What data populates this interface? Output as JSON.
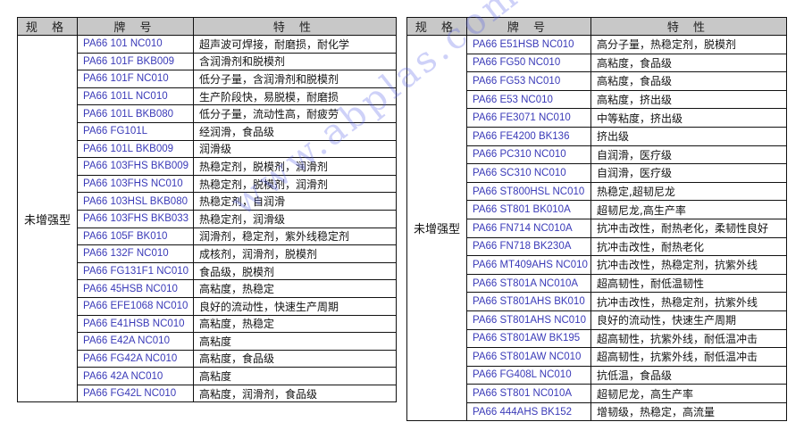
{
  "headers": {
    "spec": "规 格",
    "grade": "牌 号",
    "feature": "特 性"
  },
  "left_table": {
    "spec": "未增强型",
    "rows": [
      {
        "grade": "PA66 101 NC010",
        "feature": "超声波可焊接，耐磨损，耐化学"
      },
      {
        "grade": "PA66 101F BKB009",
        "feature": "含润滑剂和脱模剂"
      },
      {
        "grade": "PA66 101F NC010",
        "feature": "低分子量，含润滑剂和脱模剂"
      },
      {
        "grade": "PA66 101L NC010",
        "feature": "生产阶段快，易脱模，耐磨损"
      },
      {
        "grade": "PA66 101L BKB080",
        "feature": "低分子量，流动性高，耐疲劳"
      },
      {
        "grade": "PA66 FG101L",
        "feature": "经润滑，食品级"
      },
      {
        "grade": "PA66 101L BKB009",
        "feature": "润滑级"
      },
      {
        "grade": "PA66 103FHS BKB009",
        "feature": "热稳定剂，脱模剂，润滑剂"
      },
      {
        "grade": "PA66 103FHS NC010",
        "feature": "热稳定剂，脱模剂，润滑剂"
      },
      {
        "grade": "PA66 103HSL BKB080",
        "feature": "热稳定剂，自润滑"
      },
      {
        "grade": "PA66 103FHS BKB033",
        "feature": "热稳定剂，润滑级"
      },
      {
        "grade": "PA66 105F BK010",
        "feature": "润滑剂，稳定剂，紫外线稳定剂"
      },
      {
        "grade": "PA66 132F NC010",
        "feature": "成核剂，润滑剂，脱模剂"
      },
      {
        "grade": "PA66 FG131F1 NC010",
        "feature": "食品级，脱模剂"
      },
      {
        "grade": "PA66 45HSB NC010",
        "feature": "高粘度，热稳定"
      },
      {
        "grade": "PA66 EFE1068 NC010",
        "feature": "良好的流动性，快速生产周期"
      },
      {
        "grade": "PA66 E41HSB NC010",
        "feature": "高粘度，热稳定"
      },
      {
        "grade": "PA66 E42A NC010",
        "feature": "高粘度"
      },
      {
        "grade": "PA66 FG42A NC010",
        "feature": "高粘度，食品级"
      },
      {
        "grade": "PA66 42A NC010",
        "feature": "高粘度"
      },
      {
        "grade": "PA66 FG42L NC010",
        "feature": "高粘度，润滑剂，食品级"
      }
    ]
  },
  "right_table": {
    "spec": "未增强型",
    "rows": [
      {
        "grade": "PA66 E51HSB NC010",
        "feature": "高分子量，热稳定剂，脱模剂"
      },
      {
        "grade": "PA66 FG50 NC010",
        "feature": "高粘度，食品级"
      },
      {
        "grade": "PA66 FG53 NC010",
        "feature": "高粘度，食品级"
      },
      {
        "grade": "PA66 E53 NC010",
        "feature": "高粘度，挤出级"
      },
      {
        "grade": "PA66 FE3071 NC010",
        "feature": "中等粘度，挤出级"
      },
      {
        "grade": "PA66 FE4200 BK136",
        "feature": "挤出级"
      },
      {
        "grade": "PA66 PC310 NC010",
        "feature": "自润滑，医疗级"
      },
      {
        "grade": "PA66 SC310 NC010",
        "feature": "自润滑，医疗级"
      },
      {
        "grade": "PA66 ST800HSL NC010",
        "feature": "热稳定,超韧尼龙"
      },
      {
        "grade": "PA66 ST801 BK010A",
        "feature": "超韧尼龙,高生产率"
      },
      {
        "grade": "PA66 FN714 NC010A",
        "feature": "抗冲击改性，耐热老化，柔韧性良好"
      },
      {
        "grade": "PA66 FN718 BK230A",
        "feature": "抗冲击改性，耐热老化"
      },
      {
        "grade": "PA66 MT409AHS NC010",
        "feature": "抗冲击改性，热稳定剂，抗紫外线"
      },
      {
        "grade": "PA66 ST801A NC010A",
        "feature": "超高韧性，耐低温韧性"
      },
      {
        "grade": "PA66 ST801AHS BK010",
        "feature": "抗冲击改性，热稳定剂，抗紫外线"
      },
      {
        "grade": "PA66 ST801AHS NC010",
        "feature": "良好的流动性，快速生产周期"
      },
      {
        "grade": "PA66 ST801AW BK195",
        "feature": "超高韧性，抗紫外线，耐低温冲击"
      },
      {
        "grade": "PA66 ST801AW NC010",
        "feature": "超高韧性，抗紫外线，耐低温冲击"
      },
      {
        "grade": "PA66 FG408L NC010",
        "feature": "抗低温，食品级"
      },
      {
        "grade": "PA66 ST801 NC010A",
        "feature": "超韧尼龙，高生产率"
      },
      {
        "grade": "PA66 444AHS BK152",
        "feature": "增韧级，热稳定，高流量"
      }
    ]
  },
  "watermark": "www.abplas.com",
  "colors": {
    "header_bg": "#c8c8c8",
    "grade_text": "#3a3ab8"
  }
}
